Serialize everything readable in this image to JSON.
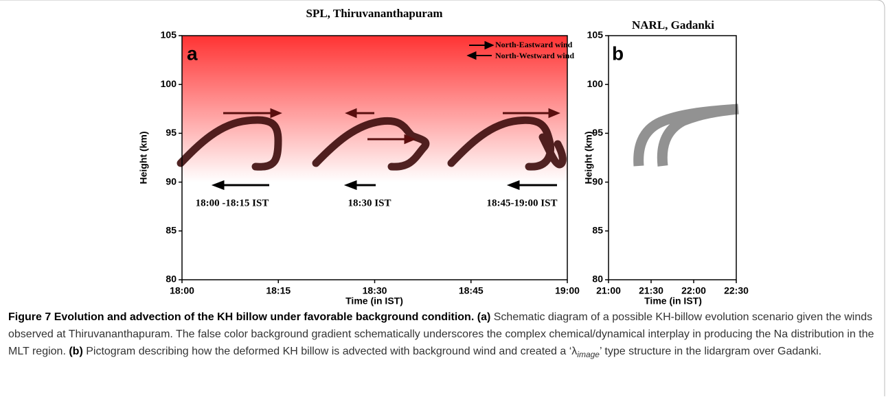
{
  "figure": {
    "panels": [
      {
        "title": "SPL, Thiruvananthapuram",
        "letter": "a",
        "ylabel": "Height (km)",
        "xlabel": "Time (in IST)",
        "ylim": [
          80,
          105
        ],
        "yticks": [
          80,
          85,
          90,
          95,
          100,
          105
        ],
        "xticks": [
          "18:00",
          "18:15",
          "18:30",
          "18:45",
          "19:00"
        ],
        "legend": [
          "North-Eastward wind",
          "North-Westward wind"
        ],
        "annotations": [
          "18:00 -18:15  IST",
          "18:30 IST",
          "18:45-19:00 IST"
        ]
      },
      {
        "title": "NARL, Gadanki",
        "letter": "b",
        "ylabel": "Height (km)",
        "xlabel": "Time (in IST)",
        "ylim": [
          80,
          105
        ],
        "yticks": [
          80,
          85,
          90,
          95,
          100,
          105
        ],
        "xticks": [
          "21:00",
          "21:30",
          "22:00",
          "22:30"
        ]
      }
    ]
  },
  "caption": {
    "label": "Figure 7",
    "heading": "Evolution and advection of the KH billow under favorable background condition.",
    "a_tag": "(a)",
    "a_text": "Schematic diagram of a possible KH-billow evolution scenario given the winds observed at Thiruvananthapuram. The false color background gradient schematically underscores the complex chemical/dynamical interplay in producing the Na distribution in the MLT region.",
    "b_tag": "(b)",
    "b_text_1": "Pictogram describing how the deformed KH billow is advected with background wind and created a ‘λ",
    "b_sub": "image",
    "b_text_2": "’ type structure in the lidargram over Gadanki."
  }
}
